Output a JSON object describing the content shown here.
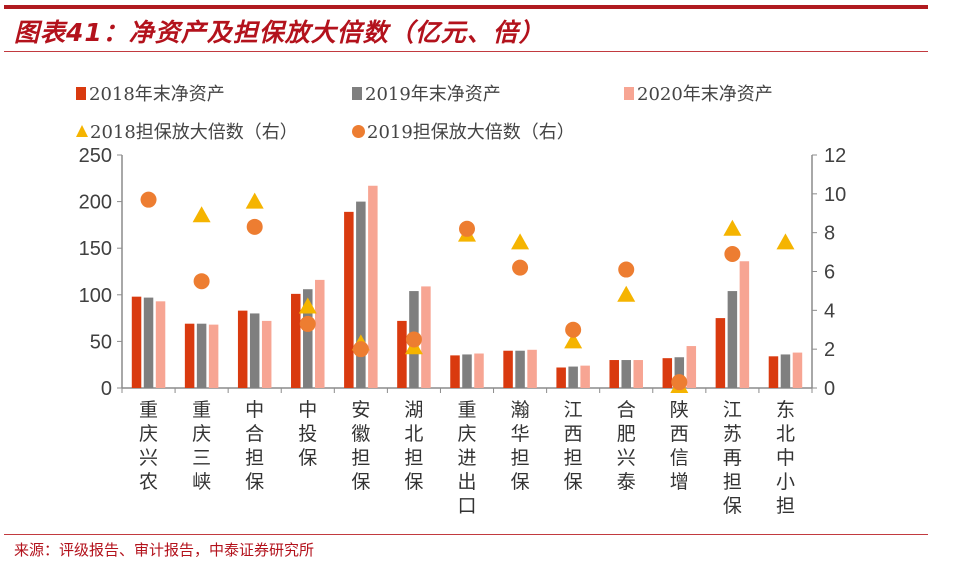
{
  "title": "图表41：净资产及担保放大倍数（亿元、倍）",
  "source": "来源：评级报告、审计报告，中泰证券研究所",
  "chart_data": {
    "type": "bar",
    "title": "图表41：净资产及担保放大倍数（亿元、倍）",
    "categories": [
      "重庆兴农",
      "重庆三峡",
      "中合担保",
      "中投保",
      "安徽担保",
      "湖北担保",
      "重庆进出口",
      "瀚华担保",
      "江西担保",
      "合肥兴泰",
      "陕西信增",
      "江苏再担保",
      "东北中小担"
    ],
    "series": [
      {
        "name": "2018年末净资产",
        "type": "bar",
        "axis": "left",
        "color": "#d93a0f",
        "values": [
          98,
          69,
          83,
          101,
          189,
          72,
          35,
          40,
          22,
          30,
          32,
          75,
          34
        ]
      },
      {
        "name": "2019年末净资产",
        "type": "bar",
        "axis": "left",
        "color": "#7f7f7f",
        "values": [
          97,
          69,
          80,
          106,
          200,
          104,
          36,
          40,
          23,
          30,
          33,
          104,
          36
        ]
      },
      {
        "name": "2020年末净资产",
        "type": "bar",
        "axis": "left",
        "color": "#f7a593",
        "values": [
          93,
          68,
          72,
          116,
          217,
          109,
          37,
          41,
          24,
          30,
          45,
          136,
          38
        ]
      },
      {
        "name": "2018担保放大倍数（右）",
        "type": "scatter",
        "marker": "triangle",
        "axis": "right",
        "color": "#f5b400",
        "values": [
          null,
          8.9,
          9.6,
          4.2,
          2.3,
          2.1,
          7.9,
          7.5,
          2.4,
          4.8,
          0.1,
          8.2,
          7.5
        ]
      },
      {
        "name": "2019担保放大倍数（右）",
        "type": "scatter",
        "marker": "circle",
        "axis": "right",
        "color": "#ed7d31",
        "values": [
          9.7,
          5.5,
          8.3,
          3.3,
          2.0,
          2.5,
          8.2,
          6.2,
          3.0,
          6.1,
          0.3,
          6.9,
          null
        ]
      }
    ],
    "ylim": [
      0,
      250
    ],
    "yticks": [
      "0",
      "50",
      "100",
      "150",
      "200",
      "250"
    ],
    "y2lim": [
      0,
      12
    ],
    "y2ticks": [
      "0",
      "2",
      "4",
      "6",
      "8",
      "10",
      "12"
    ],
    "legend": "top",
    "grid": false
  }
}
